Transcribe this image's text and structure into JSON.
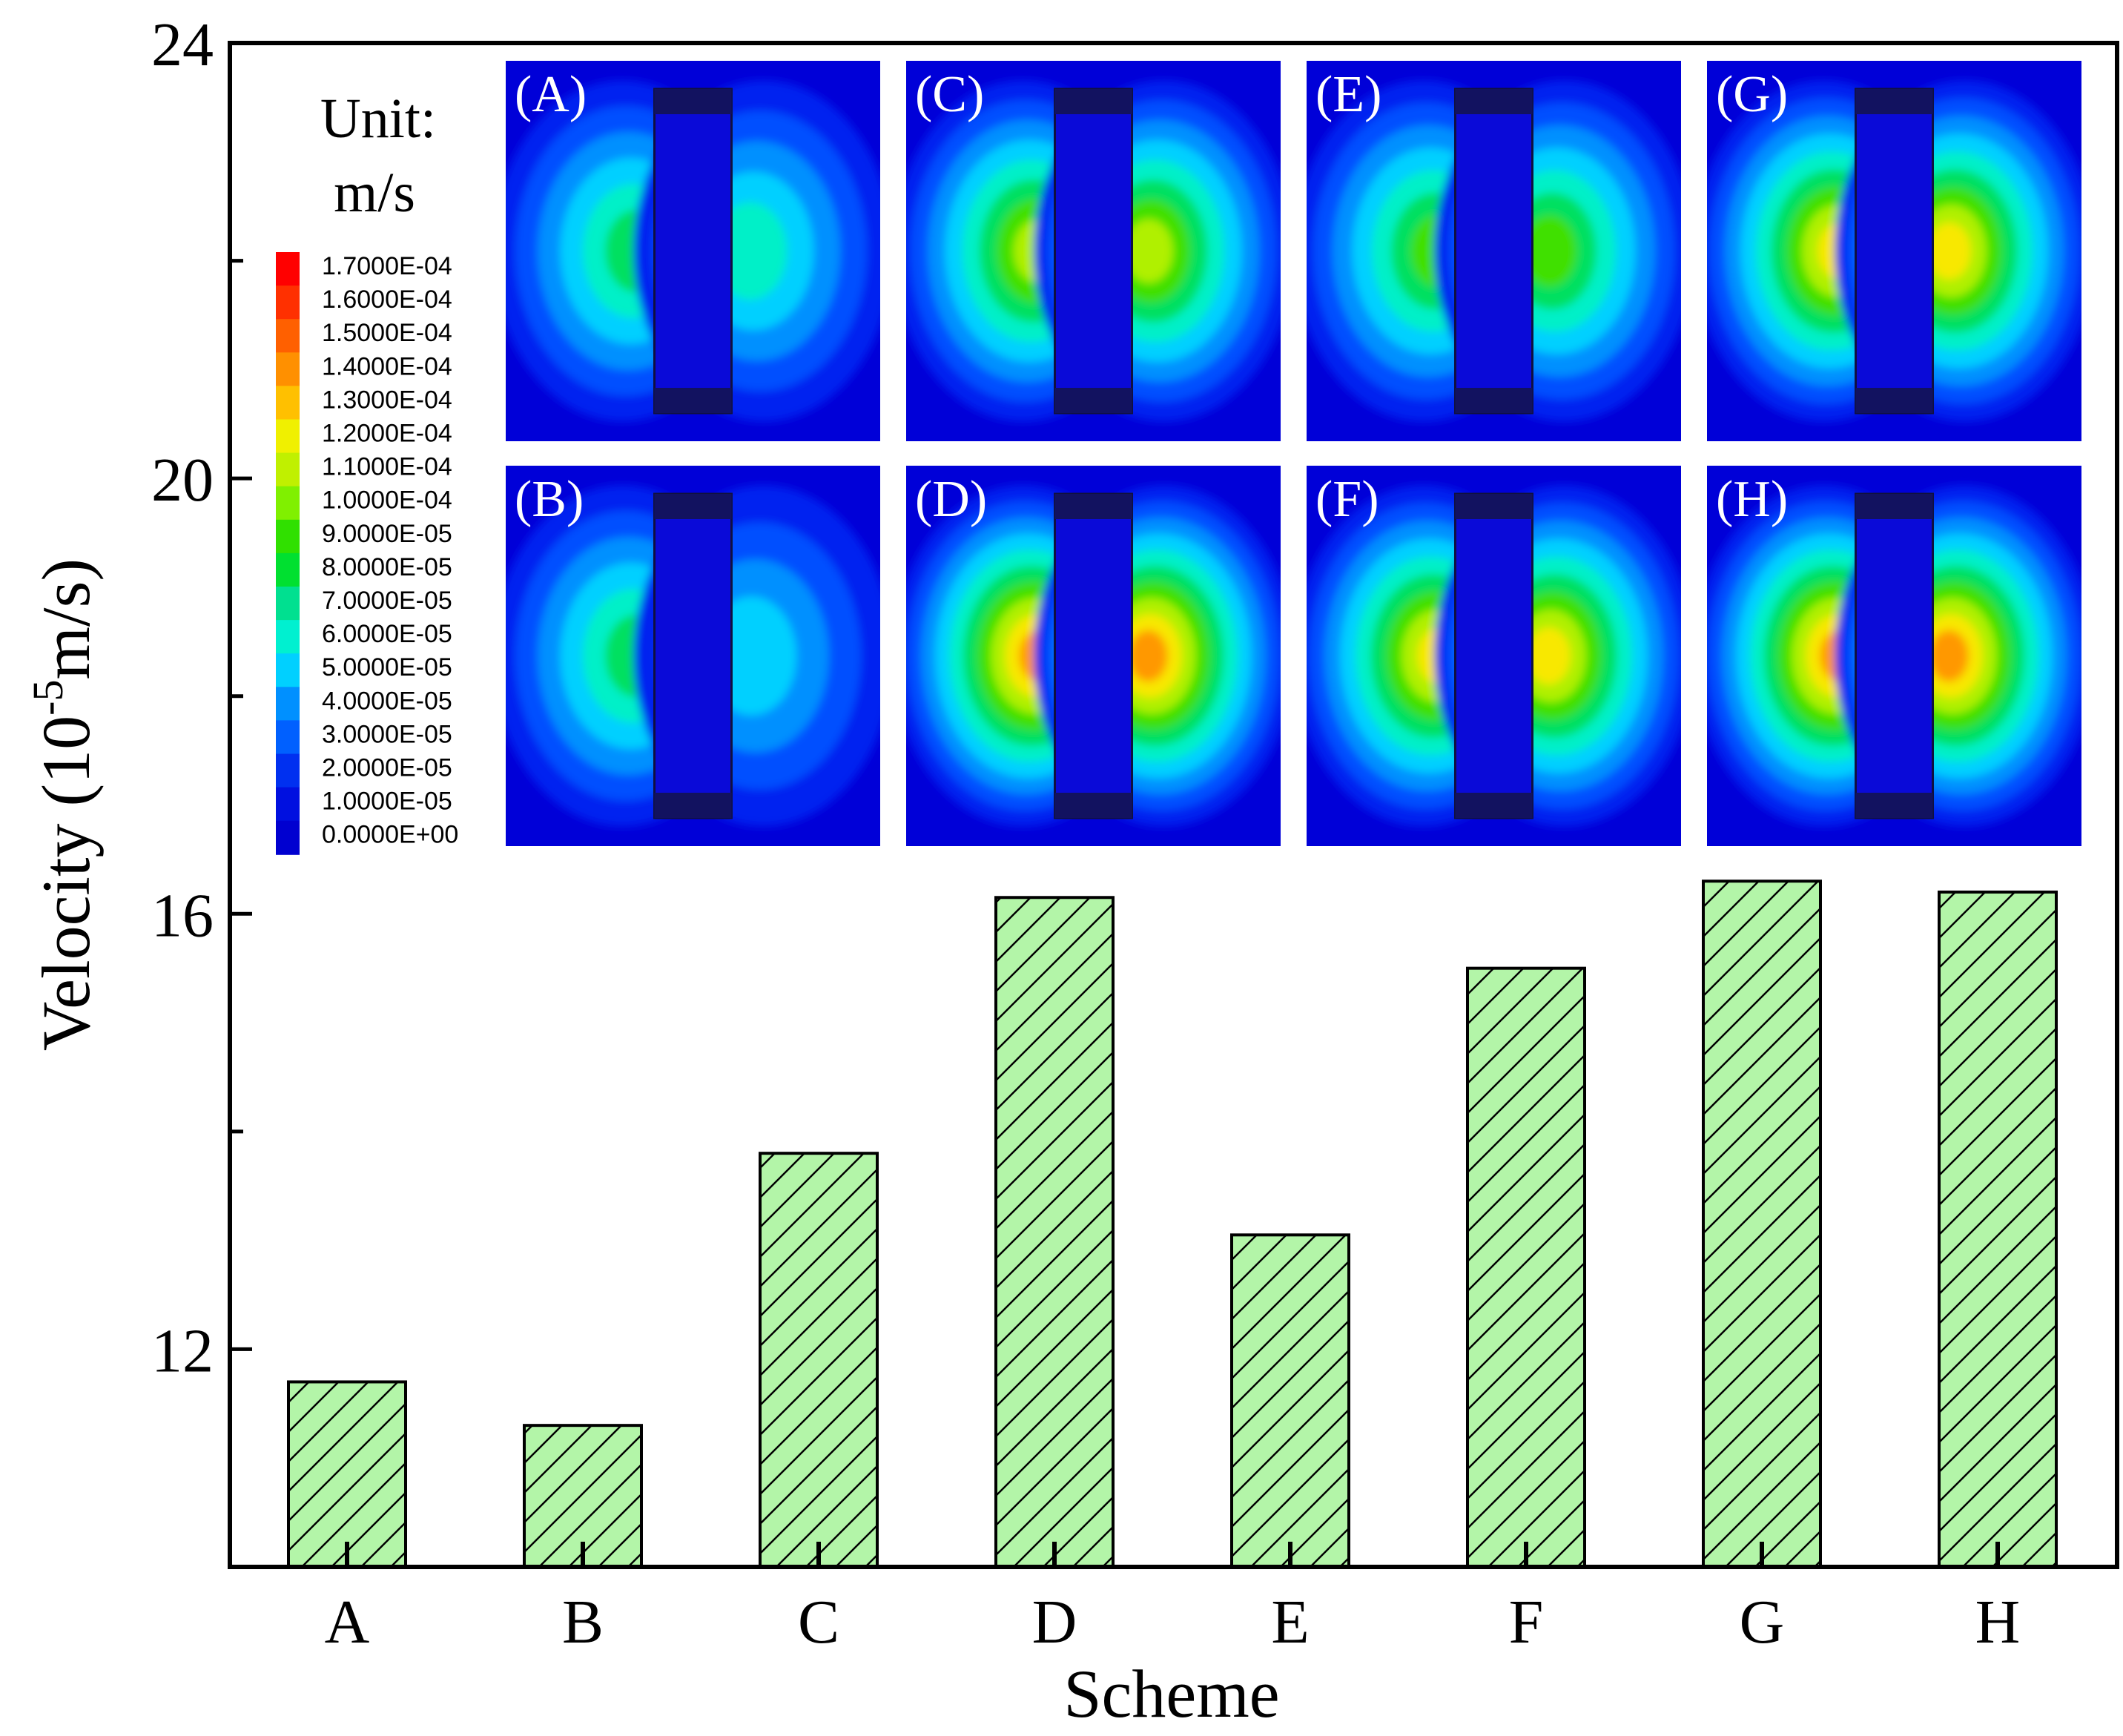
{
  "chart_data": {
    "type": "bar",
    "title": "",
    "xlabel": "Scheme",
    "ylabel_main": "Velocity (10",
    "ylabel_exponent": "-5",
    "ylabel_unit": "m/s)",
    "categories": [
      "A",
      "B",
      "C",
      "D",
      "E",
      "F",
      "G",
      "H"
    ],
    "values": [
      11.7,
      11.3,
      13.8,
      16.15,
      13.05,
      15.5,
      16.3,
      16.2
    ],
    "ylim": [
      10,
      24
    ],
    "yticks": [
      12,
      16,
      20,
      24
    ],
    "bar_fill": "#b3f5a8",
    "bar_hatch": "diagonal",
    "grid": false,
    "legend": "none"
  },
  "inset": {
    "unit_label_line1": "Unit:",
    "unit_label_line2": "m/s",
    "colorbar_levels": [
      {
        "label": "1.7000E-04",
        "color": "#ff0000"
      },
      {
        "label": "1.6000E-04",
        "color": "#ff3000"
      },
      {
        "label": "1.5000E-04",
        "color": "#ff6000"
      },
      {
        "label": "1.4000E-04",
        "color": "#ff9000"
      },
      {
        "label": "1.3000E-04",
        "color": "#ffc000"
      },
      {
        "label": "1.2000E-04",
        "color": "#f0f000"
      },
      {
        "label": "1.1000E-04",
        "color": "#c0f000"
      },
      {
        "label": "1.0000E-04",
        "color": "#80f000"
      },
      {
        "label": "9.0000E-05",
        "color": "#30e000"
      },
      {
        "label": "8.0000E-05",
        "color": "#00e030"
      },
      {
        "label": "7.0000E-05",
        "color": "#00e090"
      },
      {
        "label": "6.0000E-05",
        "color": "#00f0d0"
      },
      {
        "label": "5.0000E-05",
        "color": "#00d0ff"
      },
      {
        "label": "4.0000E-05",
        "color": "#0090ff"
      },
      {
        "label": "3.0000E-05",
        "color": "#0060ff"
      },
      {
        "label": "2.0000E-05",
        "color": "#0030f0"
      },
      {
        "label": "1.0000E-05",
        "color": "#0010e0"
      },
      {
        "label": "0.0000E+00",
        "color": "#0000d0"
      }
    ],
    "panels": [
      {
        "label": "(A)",
        "peak": 0.55,
        "sym": 0.75
      },
      {
        "label": "(C)",
        "peak": 0.75,
        "sym": 1.0
      },
      {
        "label": "(E)",
        "peak": 0.6,
        "sym": 1.0
      },
      {
        "label": "(G)",
        "peak": 0.85,
        "sym": 1.0
      },
      {
        "label": "(B)",
        "peak": 0.5,
        "sym": 0.7
      },
      {
        "label": "(D)",
        "peak": 0.9,
        "sym": 1.0
      },
      {
        "label": "(F)",
        "peak": 0.78,
        "sym": 1.0
      },
      {
        "label": "(H)",
        "peak": 0.88,
        "sym": 1.0
      }
    ]
  }
}
